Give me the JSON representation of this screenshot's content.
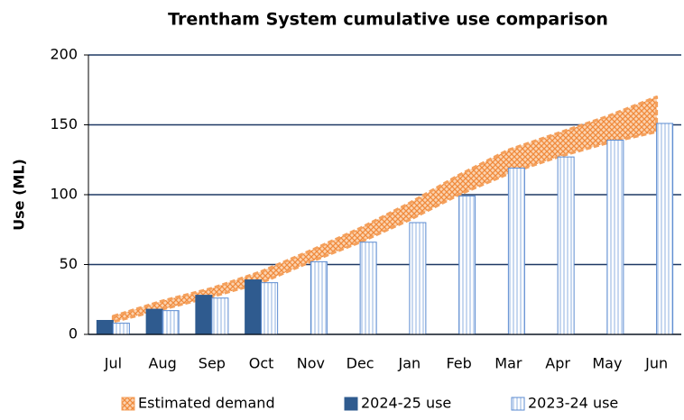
{
  "chart_data": {
    "type": "bar",
    "title": "Trentham System cumulative use comparison",
    "y_label": "Use  (ML)",
    "categories": [
      "Jul",
      "Aug",
      "Sep",
      "Oct",
      "Nov",
      "Dec",
      "Jan",
      "Feb",
      "Mar",
      "Apr",
      "May",
      "Jun"
    ],
    "series": [
      {
        "name": "Estimated demand",
        "type": "range",
        "color": "#f4a05c",
        "lower": [
          9,
          18,
          27,
          37,
          52,
          66,
          82,
          100,
          115,
          127,
          137,
          145
        ],
        "upper": [
          13,
          24,
          33,
          45,
          60,
          76,
          94,
          114,
          132,
          144,
          156,
          170
        ]
      },
      {
        "name": "2024-25 use",
        "type": "bar",
        "color": "#2f5b8f",
        "values": [
          10,
          18,
          28,
          39,
          null,
          null,
          null,
          null,
          null,
          null,
          null,
          null
        ]
      },
      {
        "name": "2023-24 use",
        "type": "bar",
        "color": "#5b8bd0",
        "values": [
          8,
          17,
          26,
          37,
          52,
          66,
          80,
          99,
          119,
          127,
          139,
          151
        ]
      }
    ],
    "ylim": [
      0,
      200
    ],
    "yticks": [
      0,
      50,
      100,
      150,
      200
    ],
    "grid": true,
    "legend": "bottom"
  }
}
